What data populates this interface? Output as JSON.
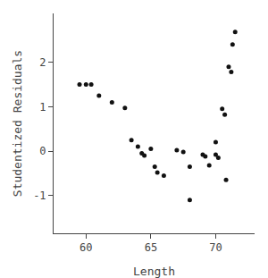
{
  "chart_data": {
    "type": "scatter",
    "xlabel": "Length",
    "ylabel": "Studentized Residuals",
    "x": [
      59.5,
      60.0,
      60.4,
      61.0,
      62.0,
      63.0,
      63.5,
      64.0,
      64.3,
      64.5,
      65.0,
      65.3,
      65.5,
      66.0,
      67.0,
      67.5,
      68.0,
      68.0,
      69.0,
      69.2,
      69.5,
      70.0,
      70.0,
      70.2,
      70.5,
      70.7,
      70.8,
      71.0,
      71.2,
      71.3,
      71.5
    ],
    "values": [
      1.5,
      1.5,
      1.5,
      1.25,
      1.1,
      0.97,
      0.25,
      0.1,
      -0.05,
      -0.1,
      0.05,
      -0.35,
      -0.48,
      -0.55,
      0.02,
      -0.02,
      -0.35,
      -1.1,
      -0.08,
      -0.12,
      -0.32,
      0.2,
      -0.08,
      -0.15,
      0.95,
      0.82,
      -0.65,
      1.9,
      1.78,
      2.4,
      2.68
    ],
    "xlim": [
      57.5,
      73.0
    ],
    "ylim": [
      -1.85,
      3.1
    ],
    "xticks": [
      60,
      65,
      70
    ],
    "yticks": [
      -1,
      0,
      1,
      2
    ],
    "color": "#111111",
    "grid": false
  }
}
